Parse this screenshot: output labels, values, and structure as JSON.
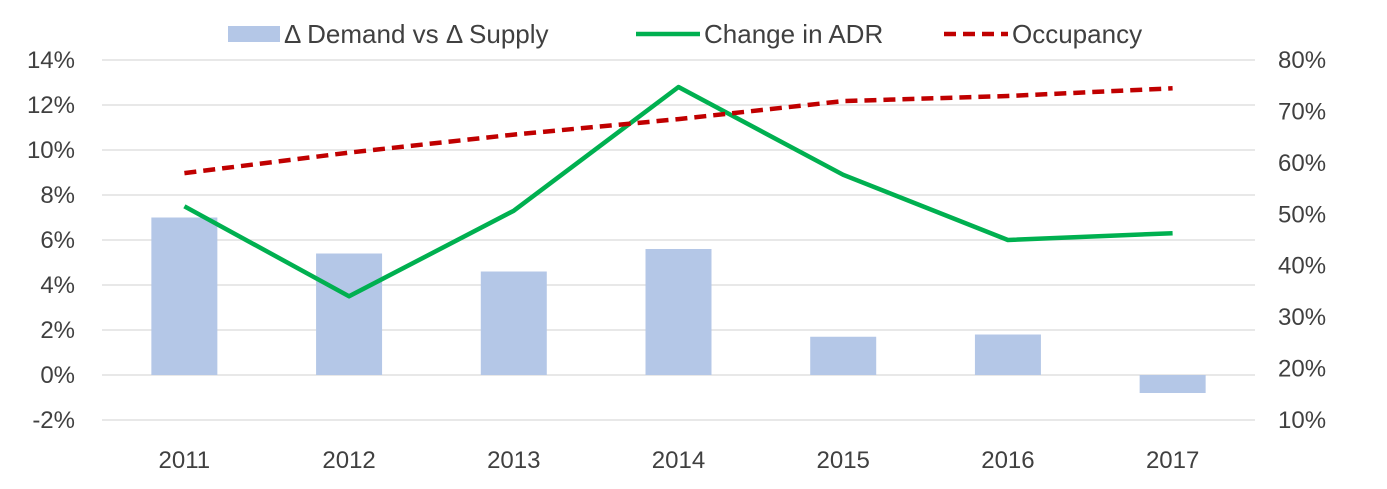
{
  "chart_data": {
    "type": "bar",
    "categories": [
      "2011",
      "2012",
      "2013",
      "2014",
      "2015",
      "2016",
      "2017"
    ],
    "series": [
      {
        "name": "Δ Demand vs Δ Supply",
        "type": "bar",
        "axis": "left",
        "color": "#b4c7e7",
        "values": [
          7.0,
          5.4,
          4.6,
          5.6,
          1.7,
          1.8,
          -0.8
        ]
      },
      {
        "name": "Change in ADR",
        "type": "line",
        "axis": "left",
        "color": "#00b050",
        "style": "solid",
        "values": [
          7.5,
          3.5,
          7.3,
          12.8,
          8.9,
          6.0,
          6.3
        ]
      },
      {
        "name": "Occupancy",
        "type": "line",
        "axis": "right",
        "color": "#c00000",
        "style": "dashed",
        "values": [
          58.0,
          62.0,
          65.5,
          68.5,
          72.0,
          73.0,
          74.5
        ]
      }
    ],
    "y_left": {
      "min": -2,
      "max": 14,
      "ticks": [
        -2,
        0,
        2,
        4,
        6,
        8,
        10,
        12,
        14
      ],
      "tick_labels": [
        "-2%",
        "0%",
        "2%",
        "4%",
        "6%",
        "8%",
        "10%",
        "12%",
        "14%"
      ]
    },
    "y_right": {
      "min": 10,
      "max": 80,
      "ticks": [
        10,
        20,
        30,
        40,
        50,
        60,
        70,
        80
      ],
      "tick_labels": [
        "10%",
        "20%",
        "30%",
        "40%",
        "50%",
        "60%",
        "70%",
        "80%"
      ]
    },
    "grid": true,
    "legend_position": "top"
  }
}
